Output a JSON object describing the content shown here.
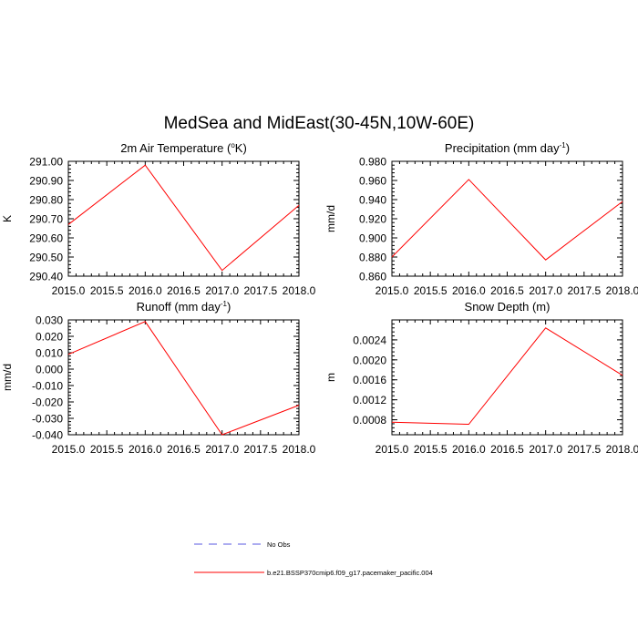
{
  "title": "MedSea and MidEast(30-45N,10W-60E)",
  "chart_data": [
    {
      "type": "line",
      "title": "2m Air Temperature (°K)",
      "title_base": "2m Air Temperature (",
      "title_sup": "o",
      "title_tail": "K)",
      "ylabel": "K",
      "xlabel": "",
      "x": [
        2015.0,
        2016.0,
        2017.0,
        2018.0
      ],
      "xlim": [
        2015.0,
        2018.0
      ],
      "xticks": [
        "2015.0",
        "2015.5",
        "2016.0",
        "2016.5",
        "2017.0",
        "2017.5",
        "2018.0"
      ],
      "ylim": [
        290.4,
        291.0
      ],
      "yticks": [
        "291.00",
        "290.90",
        "290.80",
        "290.70",
        "290.60",
        "290.50",
        "290.40"
      ],
      "series": [
        {
          "name": "b.e21.BSSP370cmip6.f09_g17.pacemaker_pacific.004",
          "values": [
            290.67,
            290.98,
            290.43,
            290.77
          ]
        }
      ]
    },
    {
      "type": "line",
      "title": "Precipitation (mm day-1)",
      "title_base": "Precipitation (mm day",
      "title_sup": "-1",
      "title_tail": ")",
      "ylabel": "mm/d",
      "xlabel": "",
      "x": [
        2015.0,
        2016.0,
        2017.0,
        2018.0
      ],
      "xlim": [
        2015.0,
        2018.0
      ],
      "xticks": [
        "2015.0",
        "2015.5",
        "2016.0",
        "2016.5",
        "2017.0",
        "2017.5",
        "2018.0"
      ],
      "ylim": [
        0.86,
        0.98
      ],
      "yticks": [
        "0.980",
        "0.960",
        "0.940",
        "0.920",
        "0.900",
        "0.880",
        "0.860"
      ],
      "series": [
        {
          "name": "b.e21.BSSP370cmip6.f09_g17.pacemaker_pacific.004",
          "values": [
            0.88,
            0.961,
            0.877,
            0.938
          ]
        }
      ]
    },
    {
      "type": "line",
      "title": "Runoff (mm day-1)",
      "title_base": "Runoff (mm day",
      "title_sup": "-1",
      "title_tail": ")",
      "ylabel": "mm/d",
      "xlabel": "",
      "x": [
        2015.0,
        2016.0,
        2017.0,
        2018.0
      ],
      "xlim": [
        2015.0,
        2018.0
      ],
      "xticks": [
        "2015.0",
        "2015.5",
        "2016.0",
        "2016.5",
        "2017.0",
        "2017.5",
        "2018.0"
      ],
      "ylim": [
        -0.04,
        0.03
      ],
      "yticks": [
        "0.030",
        "0.020",
        "0.010",
        "0.000",
        "-0.010",
        "-0.020",
        "-0.030",
        "-0.040"
      ],
      "series": [
        {
          "name": "b.e21.BSSP370cmip6.f09_g17.pacemaker_pacific.004",
          "values": [
            0.009,
            0.029,
            -0.04,
            -0.022
          ]
        }
      ]
    },
    {
      "type": "line",
      "title": "Snow Depth (m)",
      "title_base": "Snow Depth (m)",
      "title_sup": "",
      "title_tail": "",
      "ylabel": "m",
      "xlabel": "",
      "x": [
        2015.0,
        2016.0,
        2017.0,
        2018.0
      ],
      "xlim": [
        2015.0,
        2018.0
      ],
      "xticks": [
        "2015.0",
        "2015.5",
        "2016.0",
        "2016.5",
        "2017.0",
        "2017.5",
        "2018.0"
      ],
      "ylim": [
        0.0005,
        0.0028
      ],
      "yticks": [
        "0.0024",
        "0.0020",
        "0.0016",
        "0.0012",
        "0.0008"
      ],
      "ytick_values": [
        0.0024,
        0.002,
        0.0016,
        0.0012,
        0.0008
      ],
      "series": [
        {
          "name": "b.e21.BSSP370cmip6.f09_g17.pacemaker_pacific.004",
          "values": [
            0.00075,
            0.00071,
            0.00264,
            0.00169
          ]
        }
      ]
    }
  ],
  "legend": [
    {
      "label": "No Obs",
      "color": "#5a5ae0",
      "style": "dashed"
    },
    {
      "label": "b.e21.BSSP370cmip6.f09_g17.pacemaker_pacific.004",
      "color": "#ff0000",
      "style": "solid"
    }
  ]
}
